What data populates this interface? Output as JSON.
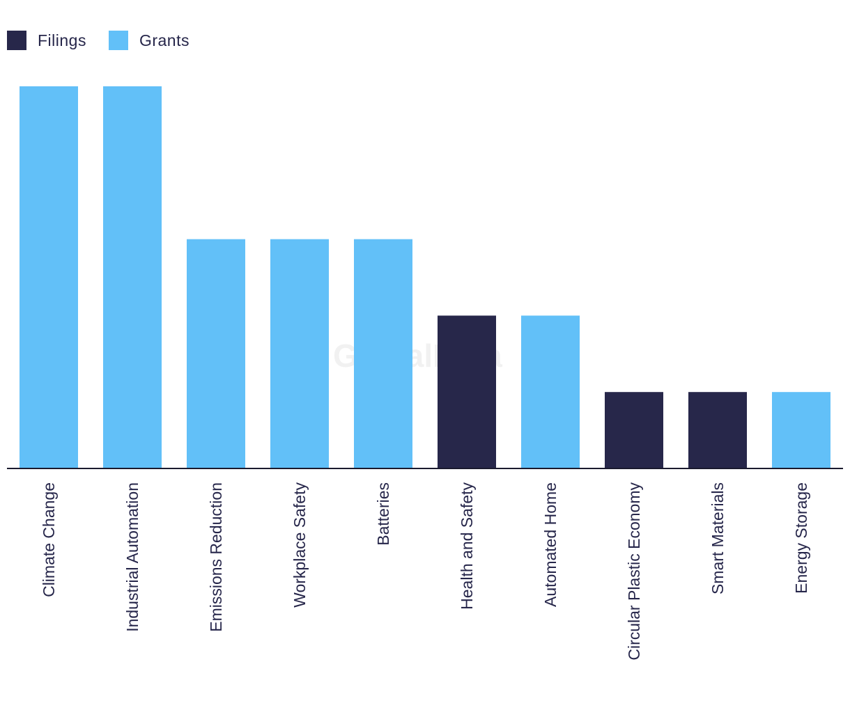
{
  "colors": {
    "filings": "#27274a",
    "grants": "#62c0f8",
    "axis": "#1a1a2e",
    "label": "#26264a"
  },
  "legend": [
    {
      "name": "Filings",
      "color": "#27274a"
    },
    {
      "name": "Grants",
      "color": "#62c0f8"
    }
  ],
  "watermark": "GlobalData",
  "chart_data": {
    "type": "bar",
    "title": "",
    "xlabel": "",
    "ylabel": "",
    "ylim": [
      0,
      5
    ],
    "grid": false,
    "legend_position": "top-left",
    "categories": [
      "Climate Change",
      "Industrial Automation",
      "Emissions Reduction",
      "Workplace Safety",
      "Batteries",
      "Health and Safety",
      "Automated Home",
      "Circular Plastic Economy",
      "Smart Materials",
      "Energy Storage"
    ],
    "series": [
      {
        "name": "Filings",
        "values": [
          0,
          0,
          0,
          0,
          0,
          2,
          0,
          1,
          1,
          0
        ]
      },
      {
        "name": "Grants",
        "values": [
          5,
          5,
          3,
          3,
          3,
          0,
          2,
          0,
          0,
          1
        ]
      }
    ]
  }
}
